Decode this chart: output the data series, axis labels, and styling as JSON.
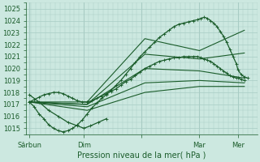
{
  "title": "Pression niveau de la mer( hPa )",
  "bg_color": "#cce8e0",
  "grid_color": "#a8ccc4",
  "line_color": "#1a5c2a",
  "ylim": [
    1014.5,
    1025.5
  ],
  "yticks": [
    1015,
    1016,
    1017,
    1018,
    1019,
    1020,
    1021,
    1022,
    1023,
    1024,
    1025
  ],
  "xlim": [
    0,
    288
  ],
  "day_lines": [
    72,
    144,
    216,
    264
  ],
  "xtick_positions": [
    4,
    72,
    144,
    216,
    264
  ],
  "xtick_labels": [
    "Sârbun",
    "Dim",
    "",
    "Mar",
    "Mer"
  ],
  "series": [
    {
      "x": [
        4,
        10,
        16,
        22,
        28,
        34,
        40,
        46,
        52,
        58,
        64,
        70,
        76,
        82,
        88,
        94,
        100,
        106,
        112,
        118,
        124,
        130,
        136,
        142,
        148,
        154,
        160,
        166,
        172,
        178,
        184,
        190,
        196,
        202,
        208,
        214,
        218,
        222,
        226,
        230,
        234,
        238,
        242,
        246,
        250,
        254,
        258,
        262,
        264,
        268,
        272,
        276
      ],
      "y": [
        1017.2,
        1016.8,
        1016.2,
        1015.8,
        1015.3,
        1015.0,
        1014.8,
        1014.7,
        1014.8,
        1015.0,
        1015.3,
        1015.7,
        1016.2,
        1016.7,
        1017.1,
        1017.5,
        1017.8,
        1018.2,
        1018.6,
        1019.0,
        1019.5,
        1020.0,
        1020.5,
        1021.0,
        1021.4,
        1021.8,
        1022.2,
        1022.6,
        1022.9,
        1023.2,
        1023.5,
        1023.7,
        1023.8,
        1023.9,
        1024.0,
        1024.1,
        1024.2,
        1024.3,
        1024.2,
        1024.0,
        1023.8,
        1023.5,
        1023.1,
        1022.7,
        1022.2,
        1021.6,
        1021.0,
        1020.4,
        1019.9,
        1019.5,
        1019.3,
        1019.2
      ],
      "marker": true,
      "lw": 0.9
    },
    {
      "x": [
        4,
        76,
        148,
        216,
        272
      ],
      "y": [
        1017.2,
        1017.2,
        1022.5,
        1021.5,
        1023.2
      ],
      "marker": false,
      "lw": 0.8
    },
    {
      "x": [
        4,
        76,
        148,
        216,
        272
      ],
      "y": [
        1017.2,
        1017.0,
        1021.2,
        1020.8,
        1021.3
      ],
      "marker": false,
      "lw": 0.8
    },
    {
      "x": [
        4,
        76,
        148,
        216,
        272
      ],
      "y": [
        1017.2,
        1017.0,
        1020.0,
        1019.8,
        1019.2
      ],
      "marker": false,
      "lw": 0.8
    },
    {
      "x": [
        4,
        76,
        148,
        216,
        272
      ],
      "y": [
        1017.2,
        1016.8,
        1018.8,
        1019.0,
        1018.8
      ],
      "marker": false,
      "lw": 0.8
    },
    {
      "x": [
        4,
        76,
        148,
        216,
        272
      ],
      "y": [
        1017.2,
        1016.5,
        1018.0,
        1018.5,
        1018.5
      ],
      "marker": false,
      "lw": 0.8
    },
    {
      "x": [
        4,
        10,
        16,
        22,
        28,
        34,
        40,
        46,
        52,
        58,
        64,
        70,
        76,
        82,
        88,
        94,
        100,
        106,
        112,
        118,
        124,
        130,
        136,
        142,
        148,
        154,
        160,
        166,
        172,
        178,
        184,
        190,
        196,
        202,
        208,
        214,
        218,
        222,
        226,
        230,
        234,
        238,
        242,
        246,
        250,
        254,
        258,
        262,
        264,
        268,
        272
      ],
      "y": [
        1017.2,
        1017.4,
        1017.6,
        1017.8,
        1017.9,
        1018.0,
        1018.0,
        1017.9,
        1017.7,
        1017.5,
        1017.3,
        1017.2,
        1017.2,
        1017.3,
        1017.5,
        1017.7,
        1017.9,
        1018.1,
        1018.3,
        1018.6,
        1018.9,
        1019.1,
        1019.4,
        1019.7,
        1020.0,
        1020.2,
        1020.4,
        1020.6,
        1020.7,
        1020.8,
        1020.9,
        1020.9,
        1021.0,
        1021.0,
        1021.0,
        1021.0,
        1020.9,
        1020.8,
        1020.7,
        1020.6,
        1020.4,
        1020.2,
        1020.0,
        1019.8,
        1019.6,
        1019.4,
        1019.3,
        1019.2,
        1019.2,
        1019.1,
        1019.0
      ],
      "marker": true,
      "lw": 0.9
    },
    {
      "x": [
        4,
        16,
        28,
        40,
        52,
        64,
        72,
        80,
        90,
        100
      ],
      "y": [
        1017.8,
        1017.2,
        1016.5,
        1016.0,
        1015.5,
        1015.2,
        1015.0,
        1015.2,
        1015.5,
        1015.8
      ],
      "marker": true,
      "lw": 0.9
    }
  ]
}
